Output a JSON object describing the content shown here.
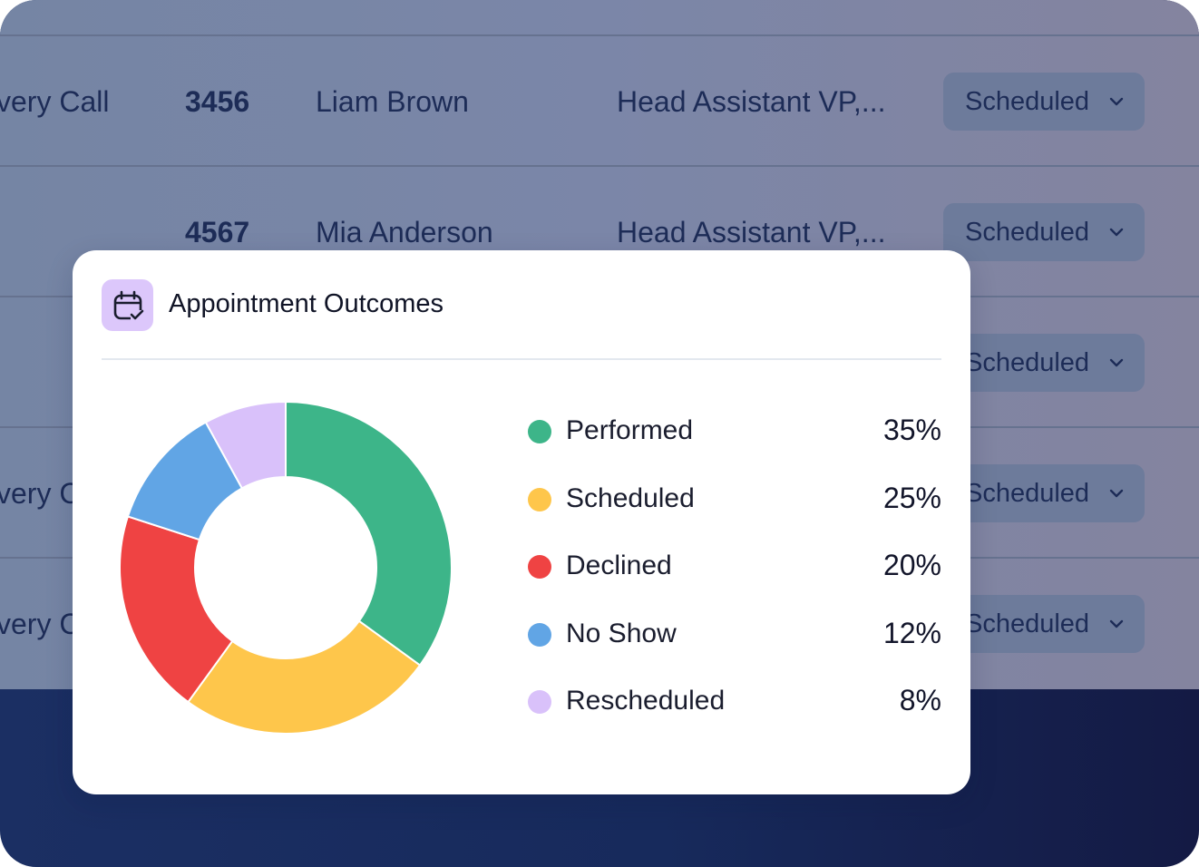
{
  "table": {
    "rows": [
      {
        "type": "very Call",
        "id": "3456",
        "name": "Liam Brown",
        "title": "Head Assistant VP,...",
        "status": "Scheduled"
      },
      {
        "type": "",
        "id": "4567",
        "name": "Mia Anderson",
        "title": "Head Assistant VP,...",
        "status": "Scheduled"
      },
      {
        "type": "",
        "id": "",
        "name": "",
        "title": "",
        "status": "Scheduled"
      },
      {
        "type": "very C",
        "id": "",
        "name": "",
        "title": "",
        "status": "Scheduled"
      },
      {
        "type": "very C",
        "id": "",
        "name": "",
        "title": "",
        "status": "Scheduled"
      }
    ]
  },
  "modal": {
    "icon": "calendar-check-icon",
    "title": "Appointment Outcomes"
  },
  "chart_data": {
    "type": "pie",
    "donut": true,
    "title": "",
    "categories": [
      "Performed",
      "Scheduled",
      "Declined",
      "No Show",
      "Rescheduled"
    ],
    "values": [
      35,
      25,
      20,
      12,
      8
    ],
    "labels": [
      "35%",
      "25%",
      "20%",
      "12%",
      "8%"
    ],
    "colors": [
      "#3db589",
      "#fec64b",
      "#ef4343",
      "#61a5e5",
      "#d9c1fa"
    ],
    "legend": "right"
  }
}
